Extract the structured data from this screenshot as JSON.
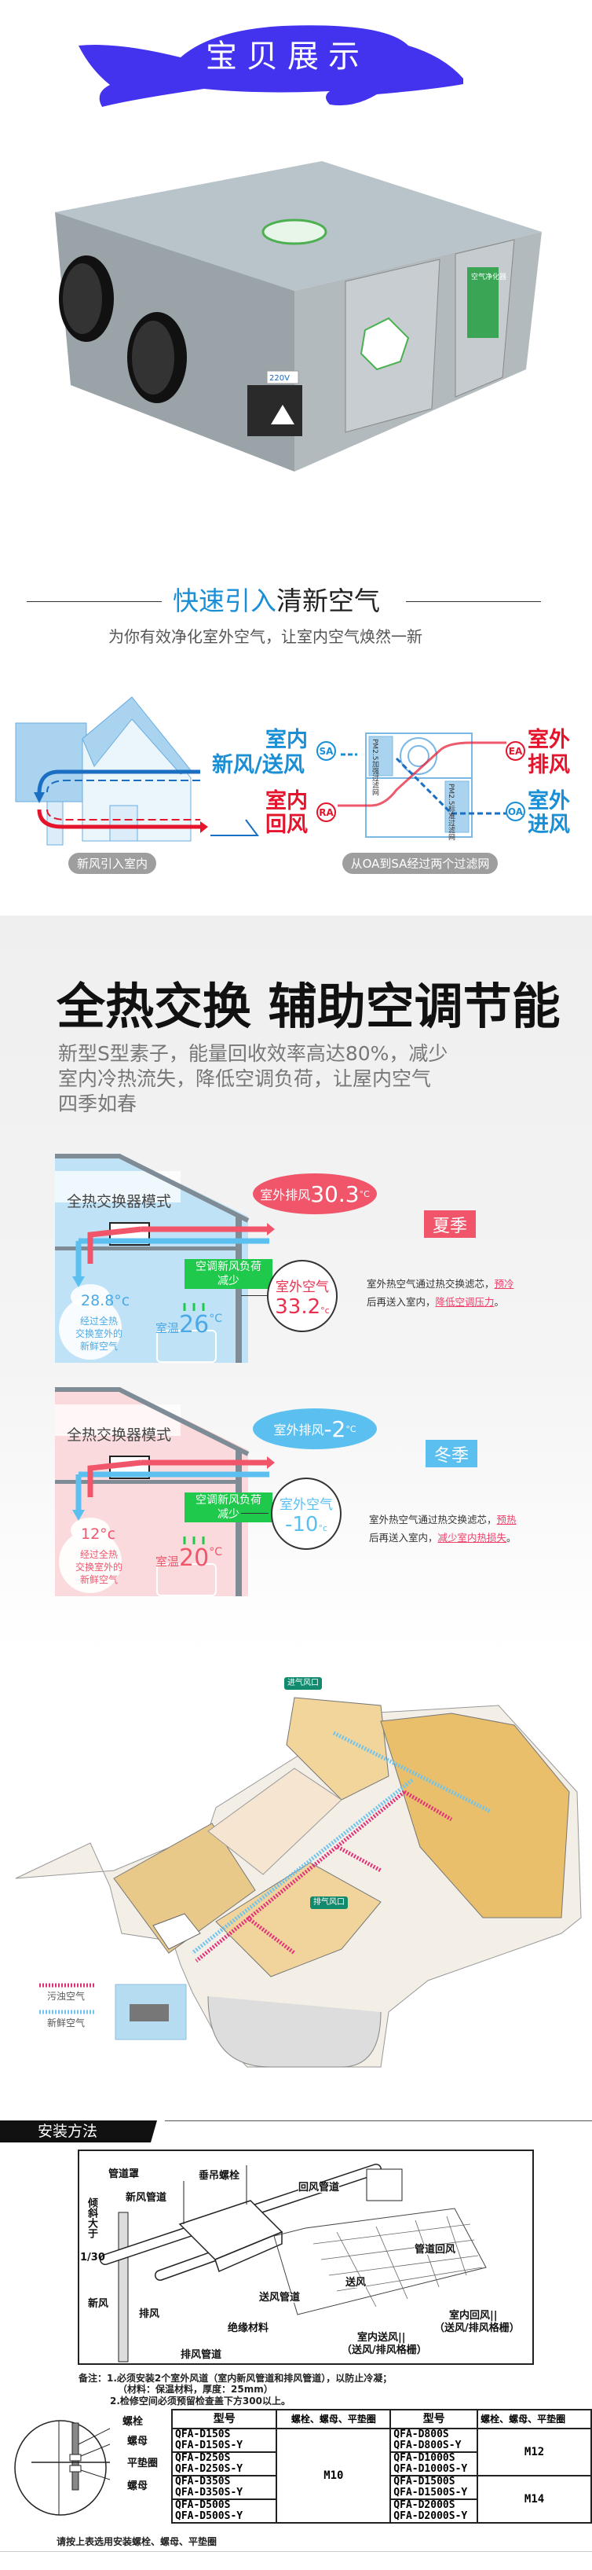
{
  "banner": {
    "title": "宝贝展示",
    "fish_color": "#4433ee"
  },
  "product": {
    "voltage_label": "220V",
    "panel_label": "空气净化器"
  },
  "fresh_air": {
    "title_blue": "快速引入",
    "title_dark": "清新空气",
    "subtitle": "为你有效净化室外空气，让室内空气焕然一新",
    "sa": {
      "top": "室内",
      "bottom": "新风/送风",
      "badge": "SA"
    },
    "ra": {
      "top": "室内",
      "bottom": "回风",
      "badge": "RA"
    },
    "ea": {
      "top": "室外",
      "bottom": "排风",
      "badge": "EA"
    },
    "oa": {
      "top": "室外",
      "bottom": "进风",
      "badge": "OA"
    },
    "filter_strong": "PM2.5加强过滤网",
    "filter_standard": "PM2.5标准过滤网",
    "caption_left": "新风引入室内",
    "caption_right": "从OA到SA经过两个过滤网",
    "colors": {
      "blue": "#1a8fd6",
      "red": "#e4142c"
    }
  },
  "heat_exchange": {
    "title": "全热交换 辅助空调节能",
    "body_lines": [
      "新型S型素子，能量回收效率高达80%，减少",
      "室内冷热流失，降低空调负荷，让屋内空气",
      "四季如春"
    ],
    "summer": {
      "mode": "全热交换器模式",
      "exhaust": "室外排风",
      "exhaust_temp": "30.3",
      "unit": "°C",
      "season": "夏季",
      "load_line1": "空调新风负荷",
      "load_line2": "减少",
      "supply_temp": "28.8°c",
      "supply_desc": [
        "经过全热",
        "交换室外的",
        "新鲜空气"
      ],
      "room_label": "室温",
      "room_temp": "26",
      "outdoor_label": "室外空气",
      "outdoor_temp": "33.2",
      "desc_line1": "室外热空气通过热交换滤芯，",
      "desc_hl1": "预冷",
      "desc_line2": "后再送入室内，",
      "desc_hl2": "降低空调压力",
      "desc_end": "。",
      "color": "#f0556a"
    },
    "winter": {
      "mode": "全热交换器模式",
      "exhaust": "室外排风",
      "exhaust_temp": "-2",
      "unit": "°C",
      "season": "冬季",
      "load_line1": "空调新风负荷",
      "load_line2": "减少",
      "supply_temp": "12°c",
      "supply_desc": [
        "经过全热",
        "交换室外的",
        "新鲜空气"
      ],
      "room_label": "室温",
      "room_temp": "20",
      "outdoor_label": "室外空气",
      "outdoor_temp": "-10",
      "desc_line1": "室外热空气通过热交换滤芯，",
      "desc_hl1": "预热",
      "desc_line2": "后再送入室内，",
      "desc_hl2": "减少室内热损失",
      "desc_end": "。",
      "color": "#5bc0f0"
    }
  },
  "house_layout": {
    "supply_vent": "进气风口",
    "exhaust_vent": "排气风口",
    "legend": [
      {
        "label": "污浊空气",
        "color": "#e0307a"
      },
      {
        "label": "新鲜空气",
        "color": "#6ec3ee"
      }
    ]
  },
  "install": {
    "title": "安装方法",
    "labels": {
      "duct_cover": "管道罩",
      "hanging_bolt": "垂吊螺栓",
      "return_duct": "回风管道",
      "fresh_duct": "新风管道",
      "slope": "倾斜大于",
      "slope_value": "1/30",
      "duct_return": "管道回风",
      "supply": "送风",
      "fresh": "新风",
      "exhaust": "排风",
      "supply_duct": "送风管道",
      "insulation": "绝缘材料",
      "indoor_return": "室内回风||",
      "grille1": "（送风/排风格栅）",
      "indoor_supply": "室内送风||",
      "grille2": "（送风/排风格栅）",
      "exhaust_duct": "排风管道"
    },
    "notes": [
      "备注：1.必须安装2个室外风道（室内新风管道和排风管道），以防止冷凝；",
      "（材料：保温材料，厚度：25mm）",
      "2.检修空间必须预留检查盖下方300以上。"
    ],
    "bolt_labels": [
      "螺栓",
      "螺母",
      "平垫圈",
      "螺母"
    ],
    "table": {
      "headers": [
        "型号",
        "螺栓、螺母、平垫圈",
        "型号",
        "螺栓、螺母、平垫圈"
      ],
      "left_models": [
        [
          "QFA-D150S",
          "QFA-D150S-Y"
        ],
        [
          "QFA-D250S",
          "QFA-D250S-Y"
        ],
        [
          "QFA-D350S",
          "QFA-D350S-Y"
        ],
        [
          "QFA-D500S",
          "QFA-D500S-Y"
        ]
      ],
      "left_size": "M10",
      "right_models": [
        [
          "QFA-D800S",
          "QFA-D800S-Y"
        ],
        [
          "QFA-D1000S",
          "QFA-D1000S-Y"
        ],
        [
          "QFA-D1500S",
          "QFA-D1500S-Y"
        ],
        [
          "QFA-D2000S",
          "QFA-D2000S-Y"
        ]
      ],
      "right_sizes": [
        "M12",
        "M14"
      ]
    },
    "footnote": "请按上表选用安装螺栓、螺母、平垫圈"
  }
}
